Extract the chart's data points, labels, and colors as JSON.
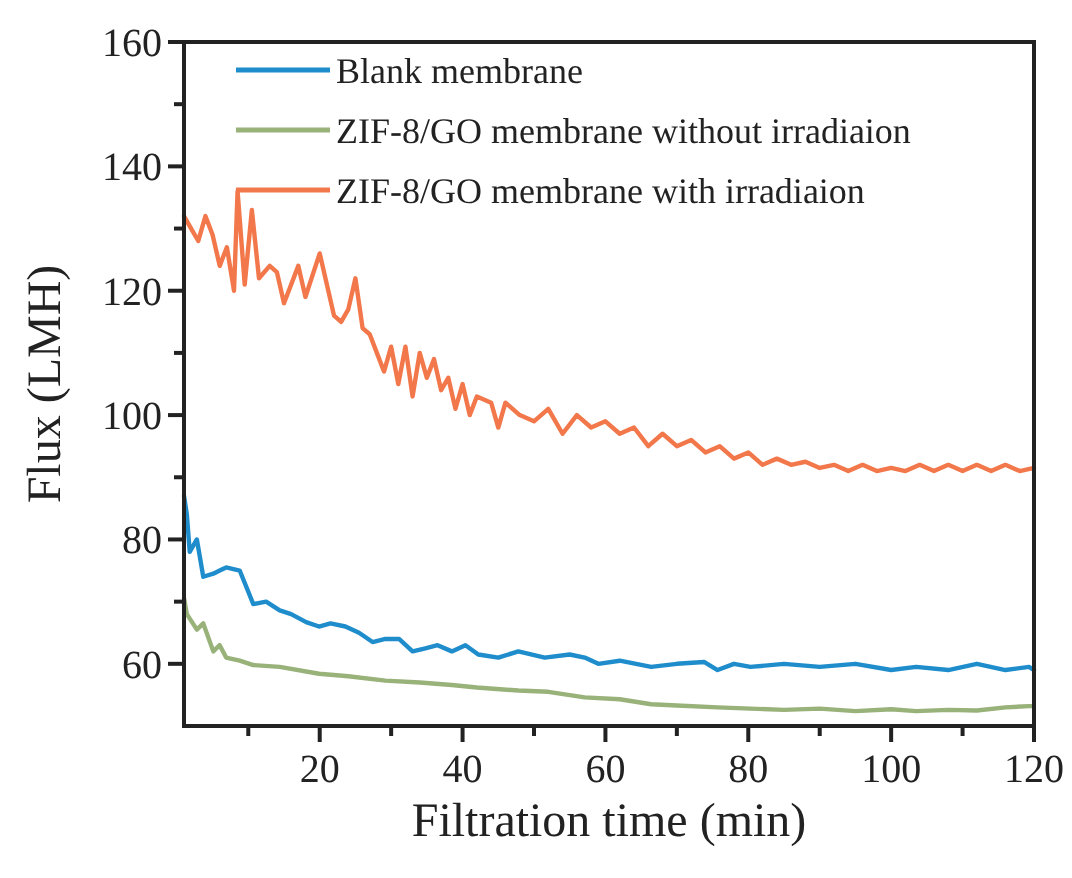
{
  "chart_data": {
    "type": "line",
    "xlabel": "Filtration time (min)",
    "ylabel": "Flux (LMH)",
    "xlim": [
      1,
      120
    ],
    "ylim": [
      50,
      160
    ],
    "xticks": [
      {
        "value": 10,
        "label": null
      },
      20,
      {
        "value": 30,
        "label": null
      },
      40,
      {
        "value": 50,
        "label": null
      },
      60,
      {
        "value": 70,
        "label": null
      },
      80,
      {
        "value": 90,
        "label": null
      },
      100,
      {
        "value": 110,
        "label": null
      },
      120
    ],
    "yticks": [
      60,
      {
        "value": 70,
        "label": null
      },
      80,
      {
        "value": 90,
        "label": null
      },
      100,
      {
        "value": 110,
        "label": null
      },
      120,
      {
        "value": 130,
        "label": null
      },
      140,
      {
        "value": 150,
        "label": null
      },
      160
    ],
    "grid": false,
    "legend": "top left",
    "marker": "none",
    "line_style": "solid",
    "series": [
      {
        "name": "Blank membrane",
        "color": "#1f8dcb",
        "x": [
          1,
          1.4,
          1.8,
          2.8,
          3.7,
          5.1,
          6,
          6.9,
          8.8,
          10.7,
          12.5,
          14.4,
          16,
          18.1,
          19.9,
          21.5,
          23.6,
          25.5,
          27.4,
          29.2,
          31.1,
          33,
          34.8,
          36.5,
          38.5,
          40.4,
          42.2,
          45,
          47.8,
          51.5,
          55,
          57.1,
          59,
          62,
          66.4,
          70,
          73.8,
          75.7,
          78,
          80.3,
          85,
          90,
          95,
          100,
          103.5,
          108,
          112,
          116,
          119.3,
          120
        ],
        "values": [
          87,
          84,
          78,
          80,
          74,
          74.5,
          75,
          75.5,
          75,
          69.6,
          70,
          68.6,
          68,
          66.7,
          66,
          66.5,
          66,
          65,
          63.5,
          64,
          64,
          62,
          62.5,
          63,
          62,
          63,
          61.5,
          61,
          62,
          61,
          61.5,
          61,
          60,
          60.5,
          59.5,
          60,
          60.3,
          59,
          60,
          59.5,
          60,
          59.5,
          60,
          59,
          59.5,
          59,
          60,
          59,
          59.5,
          59
        ]
      },
      {
        "name": "ZIF-8/GO membrane without irradiaion",
        "color": "#98b27a",
        "x": [
          1,
          1.4,
          2.8,
          3.7,
          5.1,
          6,
          6.9,
          8.8,
          10.7,
          14.4,
          19.9,
          24,
          29.2,
          34,
          38.5,
          42,
          47.8,
          52,
          57.1,
          62,
          66.4,
          70,
          75.7,
          80.3,
          85,
          90,
          95,
          100,
          103.5,
          108,
          112,
          116,
          119.3,
          120
        ],
        "values": [
          70.6,
          68,
          65.5,
          66.5,
          62,
          63,
          61,
          60.5,
          59.8,
          59.5,
          58.4,
          58,
          57.3,
          57,
          56.6,
          56.2,
          55.7,
          55.5,
          54.6,
          54.3,
          53.5,
          53.3,
          53,
          52.8,
          52.6,
          52.8,
          52.4,
          52.7,
          52.4,
          52.6,
          52.5,
          53,
          53.2,
          53.2
        ]
      },
      {
        "name": "ZIF-8/GO membrane with irradiaion",
        "color": "#f2784b",
        "x": [
          1,
          2,
          3,
          4,
          5,
          6,
          7,
          8,
          8.5,
          9.5,
          10.5,
          11.5,
          13,
          14,
          15,
          17,
          18,
          20,
          22,
          23,
          24,
          25,
          26,
          27,
          28,
          29,
          30,
          31,
          32,
          33,
          34,
          35,
          36,
          37,
          38,
          39,
          40,
          41,
          42,
          44,
          45,
          46,
          48,
          50,
          52,
          54,
          56,
          58,
          60,
          62,
          64,
          66,
          68,
          70,
          72,
          74,
          76,
          78,
          80,
          82,
          84,
          86,
          88,
          90,
          92,
          94,
          96,
          98,
          100,
          102,
          104,
          106,
          108,
          110,
          112,
          114,
          116,
          118,
          120
        ],
        "values": [
          132,
          130,
          128,
          132,
          129,
          124,
          127,
          120,
          136,
          121,
          133,
          122,
          124,
          123,
          118,
          124,
          119,
          126,
          116,
          115,
          117,
          122,
          114,
          113,
          110,
          107,
          111,
          105,
          111,
          103,
          110,
          106,
          109,
          104,
          106,
          101,
          105,
          100,
          103,
          102,
          98,
          102,
          100,
          99,
          101,
          97,
          100,
          98,
          99,
          97,
          98,
          95,
          97,
          95,
          96,
          94,
          95,
          93,
          94,
          92,
          93,
          92,
          92.5,
          91.5,
          92,
          91,
          92,
          91,
          91.5,
          91,
          92,
          91,
          92,
          91,
          92,
          91,
          92,
          91,
          91.5
        ]
      }
    ]
  }
}
